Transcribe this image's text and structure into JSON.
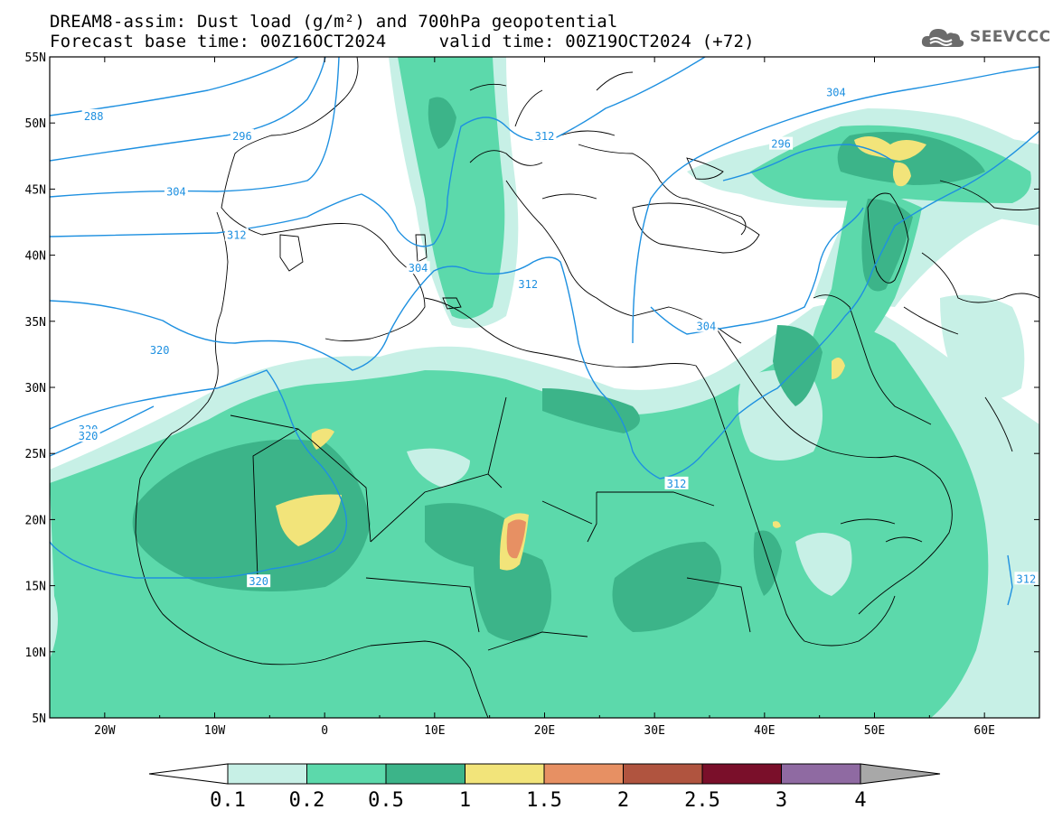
{
  "title": {
    "line1": "DREAM8-assim: Dust load (g/m²) and 700hPa geopotential",
    "line2": "Forecast base time: 00Z16OCT2024     valid time: 00Z19OCT2024 (+72)"
  },
  "logo": {
    "text": "SEEVCCC",
    "icon": "cloud-logo-icon"
  },
  "axes": {
    "lat_labels": [
      "55N",
      "50N",
      "45N",
      "40N",
      "35N",
      "30N",
      "25N",
      "20N",
      "15N",
      "10N",
      "5N"
    ],
    "lon_labels": [
      "20W",
      "10W",
      "0",
      "10E",
      "20E",
      "30E",
      "40E",
      "50E",
      "60E"
    ],
    "lat_range": [
      5,
      55
    ],
    "lon_range": [
      -25,
      65
    ]
  },
  "colorbar": {
    "colors": [
      "#c7f0e6",
      "#5cd9ab",
      "#3cb489",
      "#f2e47a",
      "#e79063",
      "#b0543f",
      "#7a0f2a",
      "#8f6aa2"
    ],
    "labels": [
      "0.1",
      "0.2",
      "0.5",
      "1",
      "1.5",
      "2",
      "2.5",
      "3",
      "4"
    ],
    "under_color": "#ffffff",
    "over_color": "#a8a8a8"
  },
  "contours": {
    "color": "#1e90e0",
    "labels": [
      {
        "text": "288",
        "lon": -21,
        "lat": 50.5
      },
      {
        "text": "296",
        "lon": -7.5,
        "lat": 49
      },
      {
        "text": "304",
        "lon": -13.5,
        "lat": 44.8
      },
      {
        "text": "312",
        "lon": -8,
        "lat": 41.5
      },
      {
        "text": "304",
        "lon": 8.5,
        "lat": 39
      },
      {
        "text": "312",
        "lon": 18.5,
        "lat": 37.8
      },
      {
        "text": "312",
        "lon": 20,
        "lat": 49
      },
      {
        "text": "320",
        "lon": -15,
        "lat": 32.8
      },
      {
        "text": "320",
        "lon": -21.5,
        "lat": 26.8
      },
      {
        "text": "320",
        "lon": -21.5,
        "lat": 26.3
      },
      {
        "text": "320",
        "lon": -6,
        "lat": 15.3
      },
      {
        "text": "312",
        "lon": 32,
        "lat": 22.7
      },
      {
        "text": "304",
        "lon": 46.5,
        "lat": 52.3
      },
      {
        "text": "296",
        "lon": 41.5,
        "lat": 48.4
      },
      {
        "text": "304",
        "lon": 34.7,
        "lat": 34.6
      },
      {
        "text": "312",
        "lon": 63.8,
        "lat": 15.5
      }
    ]
  }
}
